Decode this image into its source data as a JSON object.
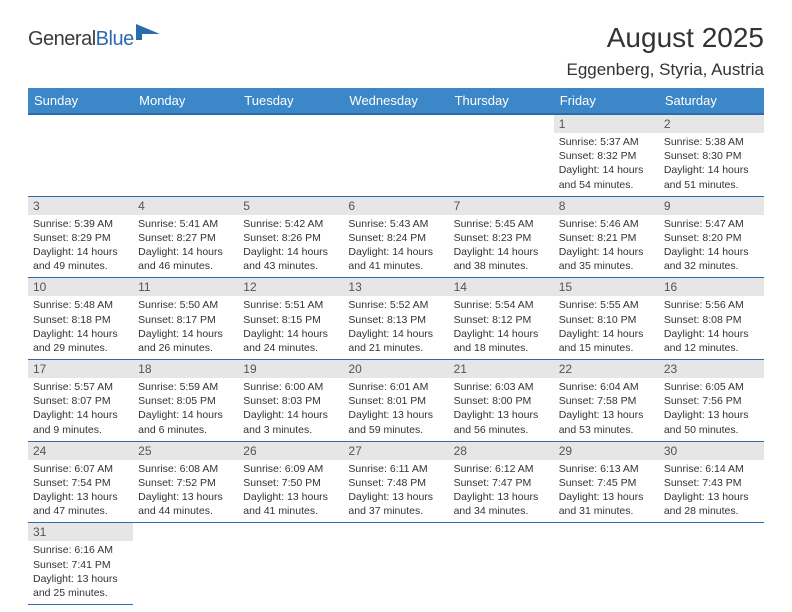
{
  "logo": {
    "part1": "General",
    "part2": "Blue"
  },
  "title": "August 2025",
  "subtitle": "Eggenberg, Styria, Austria",
  "colors": {
    "header_bg": "#3b87c8",
    "header_border": "#2a6bb0",
    "daynum_bg": "#e6e6e6",
    "text": "#333333",
    "row_border": "#2a6bb0"
  },
  "daynames": [
    "Sunday",
    "Monday",
    "Tuesday",
    "Wednesday",
    "Thursday",
    "Friday",
    "Saturday"
  ],
  "weeks": [
    [
      null,
      null,
      null,
      null,
      null,
      {
        "n": "1",
        "sr": "5:37 AM",
        "ss": "8:32 PM",
        "dl": "14 hours and 54 minutes."
      },
      {
        "n": "2",
        "sr": "5:38 AM",
        "ss": "8:30 PM",
        "dl": "14 hours and 51 minutes."
      }
    ],
    [
      {
        "n": "3",
        "sr": "5:39 AM",
        "ss": "8:29 PM",
        "dl": "14 hours and 49 minutes."
      },
      {
        "n": "4",
        "sr": "5:41 AM",
        "ss": "8:27 PM",
        "dl": "14 hours and 46 minutes."
      },
      {
        "n": "5",
        "sr": "5:42 AM",
        "ss": "8:26 PM",
        "dl": "14 hours and 43 minutes."
      },
      {
        "n": "6",
        "sr": "5:43 AM",
        "ss": "8:24 PM",
        "dl": "14 hours and 41 minutes."
      },
      {
        "n": "7",
        "sr": "5:45 AM",
        "ss": "8:23 PM",
        "dl": "14 hours and 38 minutes."
      },
      {
        "n": "8",
        "sr": "5:46 AM",
        "ss": "8:21 PM",
        "dl": "14 hours and 35 minutes."
      },
      {
        "n": "9",
        "sr": "5:47 AM",
        "ss": "8:20 PM",
        "dl": "14 hours and 32 minutes."
      }
    ],
    [
      {
        "n": "10",
        "sr": "5:48 AM",
        "ss": "8:18 PM",
        "dl": "14 hours and 29 minutes."
      },
      {
        "n": "11",
        "sr": "5:50 AM",
        "ss": "8:17 PM",
        "dl": "14 hours and 26 minutes."
      },
      {
        "n": "12",
        "sr": "5:51 AM",
        "ss": "8:15 PM",
        "dl": "14 hours and 24 minutes."
      },
      {
        "n": "13",
        "sr": "5:52 AM",
        "ss": "8:13 PM",
        "dl": "14 hours and 21 minutes."
      },
      {
        "n": "14",
        "sr": "5:54 AM",
        "ss": "8:12 PM",
        "dl": "14 hours and 18 minutes."
      },
      {
        "n": "15",
        "sr": "5:55 AM",
        "ss": "8:10 PM",
        "dl": "14 hours and 15 minutes."
      },
      {
        "n": "16",
        "sr": "5:56 AM",
        "ss": "8:08 PM",
        "dl": "14 hours and 12 minutes."
      }
    ],
    [
      {
        "n": "17",
        "sr": "5:57 AM",
        "ss": "8:07 PM",
        "dl": "14 hours and 9 minutes."
      },
      {
        "n": "18",
        "sr": "5:59 AM",
        "ss": "8:05 PM",
        "dl": "14 hours and 6 minutes."
      },
      {
        "n": "19",
        "sr": "6:00 AM",
        "ss": "8:03 PM",
        "dl": "14 hours and 3 minutes."
      },
      {
        "n": "20",
        "sr": "6:01 AM",
        "ss": "8:01 PM",
        "dl": "13 hours and 59 minutes."
      },
      {
        "n": "21",
        "sr": "6:03 AM",
        "ss": "8:00 PM",
        "dl": "13 hours and 56 minutes."
      },
      {
        "n": "22",
        "sr": "6:04 AM",
        "ss": "7:58 PM",
        "dl": "13 hours and 53 minutes."
      },
      {
        "n": "23",
        "sr": "6:05 AM",
        "ss": "7:56 PM",
        "dl": "13 hours and 50 minutes."
      }
    ],
    [
      {
        "n": "24",
        "sr": "6:07 AM",
        "ss": "7:54 PM",
        "dl": "13 hours and 47 minutes."
      },
      {
        "n": "25",
        "sr": "6:08 AM",
        "ss": "7:52 PM",
        "dl": "13 hours and 44 minutes."
      },
      {
        "n": "26",
        "sr": "6:09 AM",
        "ss": "7:50 PM",
        "dl": "13 hours and 41 minutes."
      },
      {
        "n": "27",
        "sr": "6:11 AM",
        "ss": "7:48 PM",
        "dl": "13 hours and 37 minutes."
      },
      {
        "n": "28",
        "sr": "6:12 AM",
        "ss": "7:47 PM",
        "dl": "13 hours and 34 minutes."
      },
      {
        "n": "29",
        "sr": "6:13 AM",
        "ss": "7:45 PM",
        "dl": "13 hours and 31 minutes."
      },
      {
        "n": "30",
        "sr": "6:14 AM",
        "ss": "7:43 PM",
        "dl": "13 hours and 28 minutes."
      }
    ],
    [
      {
        "n": "31",
        "sr": "6:16 AM",
        "ss": "7:41 PM",
        "dl": "13 hours and 25 minutes."
      },
      null,
      null,
      null,
      null,
      null,
      null
    ]
  ],
  "labels": {
    "sunrise": "Sunrise:",
    "sunset": "Sunset:",
    "daylight": "Daylight:"
  }
}
